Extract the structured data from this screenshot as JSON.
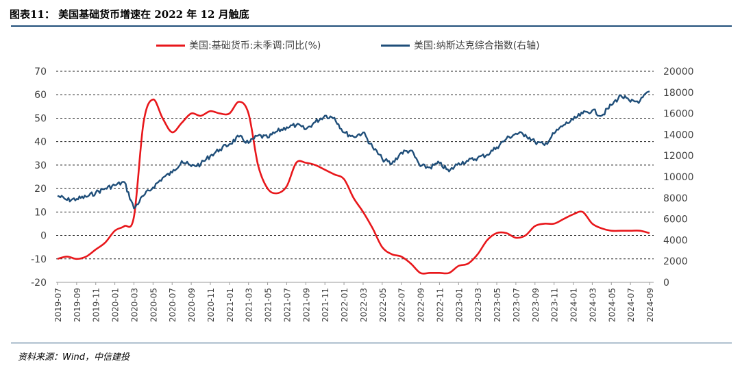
{
  "title": "图表11：  美国基础货币增速在 2022 年 12 月触底",
  "source": "资料来源：Wind，中信建投",
  "chart_data": {
    "type": "line",
    "x_tick_labels": [
      "2019-07",
      "2019-09",
      "2019-11",
      "2020-01",
      "2020-03",
      "2020-05",
      "2020-07",
      "2020-09",
      "2020-11",
      "2021-01",
      "2021-03",
      "2021-05",
      "2021-07",
      "2021-09",
      "2021-11",
      "2022-01",
      "2022-03",
      "2022-05",
      "2022-07",
      "2022-09",
      "2022-11",
      "2023-01",
      "2023-03",
      "2023-05",
      "2023-07",
      "2023-09",
      "2023-11",
      "2024-01",
      "2024-03",
      "2024-05",
      "2024-07",
      "2024-09"
    ],
    "y_left_ticks": [
      "70",
      "60",
      "50",
      "40",
      "30",
      "20",
      "10",
      "0",
      "-10",
      "-20"
    ],
    "y_right_ticks": [
      "20000",
      "18000",
      "16000",
      "14000",
      "12000",
      "10000",
      "8000",
      "6000",
      "4000",
      "2000",
      "0"
    ],
    "ylim_left": [
      -20,
      70
    ],
    "ylim_right": [
      0,
      20000
    ],
    "grid": "horizontal dashed",
    "legend_position": "top",
    "series": [
      {
        "name": "美国:基础货币:未季调:同比(%)",
        "axis": "left",
        "color": "#e8171b",
        "points": [
          [
            "2019-07",
            -10
          ],
          [
            "2019-08",
            -9
          ],
          [
            "2019-09",
            -10
          ],
          [
            "2019-10",
            -9
          ],
          [
            "2019-11",
            -6
          ],
          [
            "2019-12",
            -3
          ],
          [
            "2020-01",
            2
          ],
          [
            "2020-02",
            4
          ],
          [
            "2020-03",
            8
          ],
          [
            "2020-04",
            48
          ],
          [
            "2020-05",
            58
          ],
          [
            "2020-06",
            50
          ],
          [
            "2020-07",
            44
          ],
          [
            "2020-08",
            48
          ],
          [
            "2020-09",
            52
          ],
          [
            "2020-10",
            51
          ],
          [
            "2020-11",
            53
          ],
          [
            "2020-12",
            52
          ],
          [
            "2021-01",
            52
          ],
          [
            "2021-02",
            57
          ],
          [
            "2021-03",
            52
          ],
          [
            "2021-04",
            30
          ],
          [
            "2021-05",
            20
          ],
          [
            "2021-06",
            18
          ],
          [
            "2021-07",
            21
          ],
          [
            "2021-08",
            31
          ],
          [
            "2021-09",
            31
          ],
          [
            "2021-10",
            30
          ],
          [
            "2021-11",
            28
          ],
          [
            "2021-12",
            26
          ],
          [
            "2022-01",
            24
          ],
          [
            "2022-02",
            16
          ],
          [
            "2022-03",
            10
          ],
          [
            "2022-04",
            3
          ],
          [
            "2022-05",
            -5
          ],
          [
            "2022-06",
            -8
          ],
          [
            "2022-07",
            -9
          ],
          [
            "2022-08",
            -12
          ],
          [
            "2022-09",
            -16
          ],
          [
            "2022-10",
            -16
          ],
          [
            "2022-11",
            -16
          ],
          [
            "2022-12",
            -16
          ],
          [
            "2023-01",
            -13
          ],
          [
            "2023-02",
            -12
          ],
          [
            "2023-03",
            -8
          ],
          [
            "2023-04",
            -2
          ],
          [
            "2023-05",
            1
          ],
          [
            "2023-06",
            1
          ],
          [
            "2023-07",
            -1
          ],
          [
            "2023-08",
            0
          ],
          [
            "2023-09",
            4
          ],
          [
            "2023-10",
            5
          ],
          [
            "2023-11",
            5
          ],
          [
            "2023-12",
            7
          ],
          [
            "2024-01",
            9
          ],
          [
            "2024-02",
            10
          ],
          [
            "2024-03",
            5
          ],
          [
            "2024-04",
            3
          ],
          [
            "2024-05",
            2
          ],
          [
            "2024-06",
            2
          ],
          [
            "2024-07",
            2
          ],
          [
            "2024-08",
            2
          ],
          [
            "2024-09",
            1
          ]
        ]
      },
      {
        "name": "美国:纳斯达克综合指数(右轴)",
        "axis": "right",
        "color": "#1f4e79",
        "points": [
          [
            "2019-07",
            8200
          ],
          [
            "2019-08",
            7800
          ],
          [
            "2019-09",
            7900
          ],
          [
            "2019-10",
            8100
          ],
          [
            "2019-11",
            8500
          ],
          [
            "2019-12",
            8900
          ],
          [
            "2020-01",
            9200
          ],
          [
            "2020-02",
            9500
          ],
          [
            "2020-03",
            7000
          ],
          [
            "2020-04",
            8200
          ],
          [
            "2020-05",
            9000
          ],
          [
            "2020-06",
            9900
          ],
          [
            "2020-07",
            10400
          ],
          [
            "2020-08",
            11500
          ],
          [
            "2020-09",
            11000
          ],
          [
            "2020-10",
            11200
          ],
          [
            "2020-11",
            12000
          ],
          [
            "2020-12",
            12600
          ],
          [
            "2021-01",
            13100
          ],
          [
            "2021-02",
            13800
          ],
          [
            "2021-03",
            13200
          ],
          [
            "2021-04",
            13900
          ],
          [
            "2021-05",
            13700
          ],
          [
            "2021-06",
            14300
          ],
          [
            "2021-07",
            14700
          ],
          [
            "2021-08",
            14900
          ],
          [
            "2021-09",
            14500
          ],
          [
            "2021-10",
            15200
          ],
          [
            "2021-11",
            15800
          ],
          [
            "2021-12",
            15600
          ],
          [
            "2022-01",
            14200
          ],
          [
            "2022-02",
            13800
          ],
          [
            "2022-03",
            14200
          ],
          [
            "2022-04",
            12800
          ],
          [
            "2022-05",
            11700
          ],
          [
            "2022-06",
            11200
          ],
          [
            "2022-07",
            12300
          ],
          [
            "2022-08",
            12500
          ],
          [
            "2022-09",
            11000
          ],
          [
            "2022-10",
            10900
          ],
          [
            "2022-11",
            11300
          ],
          [
            "2022-12",
            10500
          ],
          [
            "2023-01",
            11300
          ],
          [
            "2023-02",
            11500
          ],
          [
            "2023-03",
            11800
          ],
          [
            "2023-04",
            12100
          ],
          [
            "2023-05",
            12800
          ],
          [
            "2023-06",
            13600
          ],
          [
            "2023-07",
            14100
          ],
          [
            "2023-08",
            14000
          ],
          [
            "2023-09",
            13300
          ],
          [
            "2023-10",
            13000
          ],
          [
            "2023-11",
            14100
          ],
          [
            "2023-12",
            14900
          ],
          [
            "2024-01",
            15400
          ],
          [
            "2024-02",
            16000
          ],
          [
            "2024-03",
            16300
          ],
          [
            "2024-04",
            15800
          ],
          [
            "2024-05",
            16800
          ],
          [
            "2024-06",
            17700
          ],
          [
            "2024-07",
            17100
          ],
          [
            "2024-08",
            17200
          ],
          [
            "2024-09",
            18100
          ]
        ]
      }
    ]
  }
}
